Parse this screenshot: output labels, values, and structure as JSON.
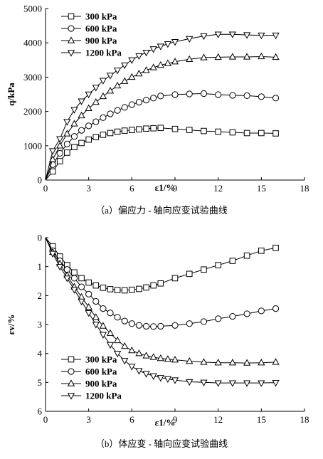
{
  "chart_data": [
    {
      "type": "line",
      "caption": "（a）偏应力 - 轴向应变试验曲线",
      "xlabel": "ε1/%",
      "ylabel": "q/kPa",
      "xlim": [
        0,
        18
      ],
      "ylim": [
        0,
        5000
      ],
      "y_inverted": false,
      "xticks": [
        "0",
        "3",
        "6",
        "9",
        "12",
        "15",
        "18"
      ],
      "yticks": [
        "0",
        "1000",
        "2000",
        "3000",
        "4000",
        "5000"
      ],
      "legend_position": "top-left",
      "series": [
        {
          "name": "300 kPa",
          "marker": "square",
          "x": [
            0,
            0.5,
            1,
            1.5,
            2,
            2.5,
            3,
            3.5,
            4,
            4.5,
            5,
            5.5,
            6,
            6.5,
            7,
            7.5,
            8,
            9,
            10,
            11,
            12,
            13,
            14,
            15,
            16
          ],
          "y": [
            0,
            250,
            550,
            800,
            960,
            1080,
            1180,
            1250,
            1320,
            1370,
            1410,
            1440,
            1460,
            1480,
            1500,
            1510,
            1520,
            1490,
            1460,
            1430,
            1410,
            1390,
            1370,
            1370,
            1360
          ]
        },
        {
          "name": "600 kPa",
          "marker": "circle",
          "x": [
            0,
            0.5,
            1,
            1.5,
            2,
            2.5,
            3,
            3.5,
            4,
            4.5,
            5,
            5.5,
            6,
            6.5,
            7,
            7.5,
            8,
            9,
            10,
            11,
            12,
            13,
            14,
            15,
            16
          ],
          "y": [
            0,
            450,
            780,
            1050,
            1270,
            1450,
            1580,
            1700,
            1820,
            1930,
            2030,
            2120,
            2200,
            2270,
            2330,
            2390,
            2450,
            2490,
            2510,
            2520,
            2490,
            2470,
            2460,
            2430,
            2390
          ]
        },
        {
          "name": "900 kPa",
          "marker": "triangle-up",
          "x": [
            0,
            0.5,
            1,
            1.5,
            2,
            2.5,
            3,
            3.5,
            4,
            4.5,
            5,
            5.5,
            6,
            6.5,
            7,
            7.5,
            8,
            8.5,
            9,
            10,
            11,
            12,
            13,
            14,
            15,
            16
          ],
          "y": [
            0,
            600,
            1000,
            1350,
            1640,
            1880,
            2090,
            2270,
            2440,
            2600,
            2750,
            2880,
            3000,
            3100,
            3200,
            3280,
            3350,
            3400,
            3450,
            3520,
            3570,
            3580,
            3590,
            3590,
            3600,
            3580
          ]
        },
        {
          "name": "1200 kPa",
          "marker": "triangle-down",
          "x": [
            0,
            0.5,
            1,
            1.5,
            2,
            2.5,
            3,
            3.5,
            4,
            4.5,
            5,
            5.5,
            6,
            6.5,
            7,
            7.5,
            8,
            8.5,
            9,
            10,
            11,
            12,
            13,
            14,
            15,
            16
          ],
          "y": [
            0,
            850,
            1200,
            1700,
            2050,
            2300,
            2500,
            2700,
            2900,
            3050,
            3200,
            3350,
            3500,
            3620,
            3720,
            3820,
            3900,
            3970,
            4030,
            4120,
            4200,
            4250,
            4250,
            4230,
            4220,
            4220
          ]
        }
      ]
    },
    {
      "type": "line",
      "caption": "（b）体应变 - 轴向应变试验曲线",
      "xlabel": "ε1/%",
      "ylabel": "εv/%",
      "xlim": [
        0,
        18
      ],
      "ylim": [
        0,
        6
      ],
      "y_inverted": true,
      "xticks": [
        "0",
        "3",
        "6",
        "9",
        "12",
        "15",
        "18"
      ],
      "yticks": [
        "0",
        "1",
        "2",
        "3",
        "4",
        "5",
        "6"
      ],
      "legend_position": "bottom-left",
      "series": [
        {
          "name": "300 kPa",
          "marker": "square",
          "x": [
            0,
            0.5,
            1,
            1.5,
            2,
            2.5,
            3,
            3.5,
            4,
            4.5,
            5,
            5.5,
            6,
            6.5,
            7,
            7.5,
            8,
            9,
            10,
            11,
            12,
            13,
            14,
            15,
            16
          ],
          "y": [
            0,
            0.3,
            0.65,
            0.95,
            1.2,
            1.4,
            1.55,
            1.65,
            1.73,
            1.78,
            1.81,
            1.82,
            1.8,
            1.77,
            1.72,
            1.65,
            1.58,
            1.4,
            1.25,
            1.1,
            0.95,
            0.8,
            0.62,
            0.45,
            0.35
          ]
        },
        {
          "name": "600 kPa",
          "marker": "circle",
          "x": [
            0,
            0.5,
            1,
            1.5,
            2,
            2.5,
            3,
            3.5,
            4,
            4.5,
            5,
            5.5,
            6,
            6.5,
            7,
            7.5,
            8,
            9,
            10,
            11,
            12,
            13,
            14,
            15,
            16
          ],
          "y": [
            0,
            0.45,
            0.8,
            1.1,
            1.4,
            1.7,
            1.95,
            2.2,
            2.45,
            2.6,
            2.75,
            2.88,
            2.97,
            3.03,
            3.06,
            3.07,
            3.06,
            3.03,
            2.97,
            2.9,
            2.8,
            2.72,
            2.63,
            2.53,
            2.45
          ]
        },
        {
          "name": "900 kPa",
          "marker": "triangle-up",
          "x": [
            0,
            0.5,
            1,
            1.5,
            2,
            2.5,
            3,
            3.5,
            4,
            4.5,
            5,
            5.5,
            6,
            6.5,
            7,
            7.5,
            8,
            8.5,
            9,
            10,
            11,
            12,
            13,
            14,
            15,
            16
          ],
          "y": [
            0,
            0.5,
            0.9,
            1.3,
            1.7,
            2.05,
            2.4,
            2.75,
            3.05,
            3.3,
            3.55,
            3.75,
            3.9,
            4.0,
            4.08,
            4.13,
            4.17,
            4.2,
            4.22,
            4.27,
            4.3,
            4.32,
            4.32,
            4.33,
            4.32,
            4.3
          ]
        },
        {
          "name": "1200 kPa",
          "marker": "triangle-down",
          "x": [
            0,
            0.5,
            1,
            1.5,
            2,
            2.5,
            3,
            3.5,
            4,
            4.5,
            5,
            5.5,
            6,
            6.5,
            7,
            7.5,
            8,
            8.5,
            9,
            10,
            11,
            12,
            13,
            14,
            15,
            16
          ],
          "y": [
            0,
            0.55,
            1.0,
            1.4,
            1.8,
            2.2,
            2.6,
            3.0,
            3.35,
            3.7,
            4.0,
            4.25,
            4.45,
            4.6,
            4.7,
            4.78,
            4.84,
            4.88,
            4.92,
            4.98,
            5.0,
            5.02,
            5.02,
            5.02,
            5.02,
            5.01
          ]
        }
      ]
    }
  ]
}
